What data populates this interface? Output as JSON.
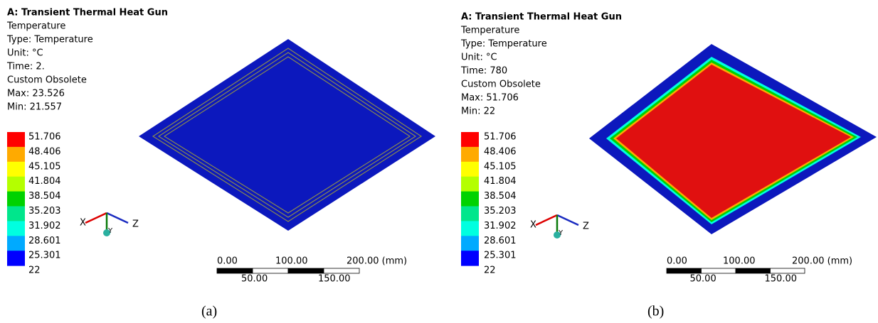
{
  "panels": [
    {
      "title": "A: Transient Thermal Heat Gun",
      "info": [
        "Temperature",
        "Type: Temperature",
        "Unit: °C",
        "Time: 2.",
        "Custom Obsolete",
        "Max: 23.526",
        "Min: 21.557"
      ],
      "legend": {
        "labels": [
          "51.706",
          "48.406",
          "45.105",
          "41.804",
          "38.504",
          "35.203",
          "31.902",
          "28.601",
          "25.301",
          "22"
        ],
        "colors": [
          "#ff0000",
          "#ffaa00",
          "#ffff00",
          "#b4ff00",
          "#00d200",
          "#00e68c",
          "#00ffe0",
          "#00aaff",
          "#0000ff"
        ]
      },
      "triad": {
        "x": "X",
        "y": "Y",
        "z": "Z"
      },
      "scale": {
        "top": [
          "0.00",
          "100.00",
          "200.00 (mm)"
        ],
        "bottom": [
          "50.00",
          "150.00"
        ]
      },
      "caption": "(a)"
    },
    {
      "title": "A: Transient Thermal Heat Gun",
      "info": [
        "Temperature",
        "Type: Temperature",
        "Unit: °C",
        "Time: 780",
        "Custom Obsolete",
        "Max: 51.706",
        "Min: 22"
      ],
      "legend": {
        "labels": [
          "51.706",
          "48.406",
          "45.105",
          "41.804",
          "38.504",
          "35.203",
          "31.902",
          "28.601",
          "25.301",
          "22"
        ],
        "colors": [
          "#ff0000",
          "#ffaa00",
          "#ffff00",
          "#b4ff00",
          "#00d200",
          "#00e68c",
          "#00ffe0",
          "#00aaff",
          "#0000ff"
        ]
      },
      "triad": {
        "x": "X",
        "y": "Y",
        "z": "Z"
      },
      "scale": {
        "top": [
          "0.00",
          "100.00",
          "200.00 (mm)"
        ],
        "bottom": [
          "50.00",
          "150.00"
        ]
      },
      "caption": "(b)"
    }
  ]
}
